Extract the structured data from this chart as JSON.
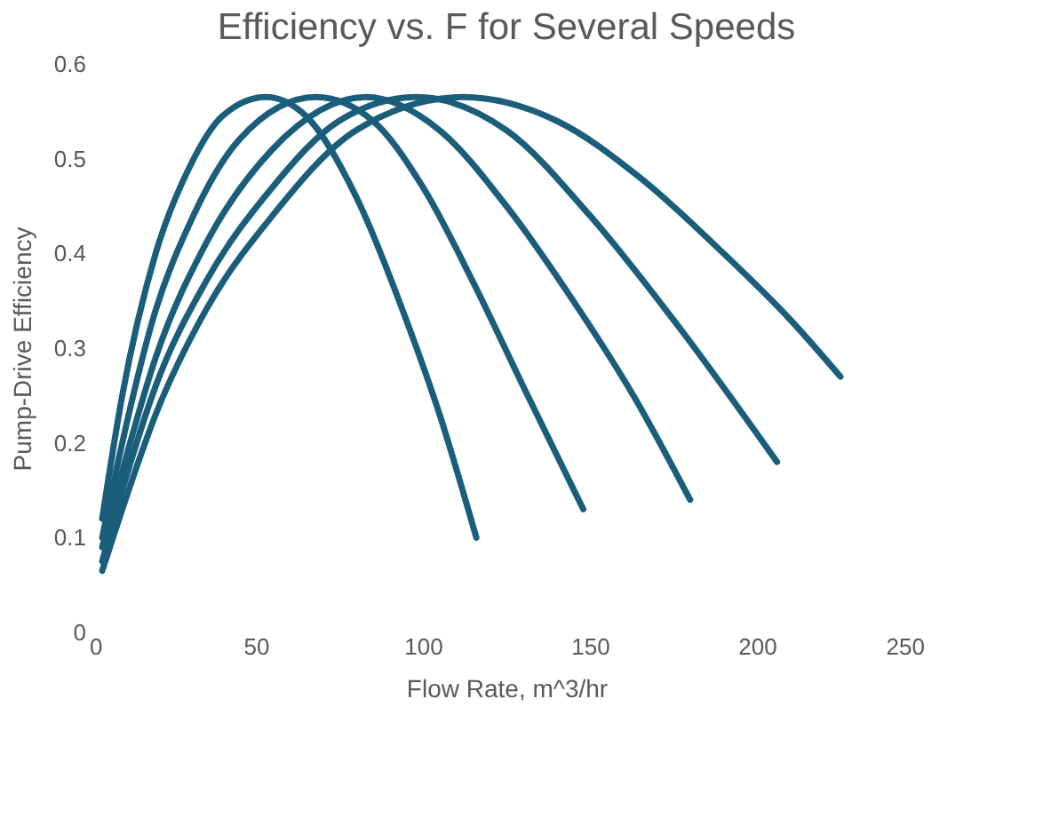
{
  "chart_data": {
    "type": "line",
    "title": "Efficiency vs. F for Several Speeds",
    "xlabel": "Flow Rate, m^3/hr",
    "ylabel": "Pump-Drive Efficiency",
    "xlim": [
      0,
      250
    ],
    "xticks": [
      0,
      50,
      100,
      150,
      200,
      250
    ],
    "ylim": [
      0,
      0.6
    ],
    "yticks": [
      0,
      0.1,
      0.2,
      0.3,
      0.4,
      0.5,
      0.6
    ],
    "grid": false,
    "legend": false,
    "marker": "none",
    "line_style": "solid",
    "series": [
      {
        "color": "#1b5e7b",
        "x": [
          4,
          10,
          20,
          30,
          40,
          53,
          65,
          80,
          95,
          105,
          116
        ],
        "values": [
          0.12,
          0.25,
          0.4,
          0.49,
          0.545,
          0.565,
          0.545,
          0.46,
          0.33,
          0.23,
          0.1
        ]
      },
      {
        "color": "#1b5e7b",
        "x": [
          4,
          10,
          20,
          30,
          45,
          68,
          85,
          100,
          115,
          130,
          148
        ],
        "values": [
          0.1,
          0.2,
          0.34,
          0.43,
          0.52,
          0.565,
          0.54,
          0.47,
          0.37,
          0.26,
          0.13
        ]
      },
      {
        "color": "#1b5e7b",
        "x": [
          4,
          10,
          20,
          35,
          55,
          83,
          105,
          125,
          145,
          163,
          180
        ],
        "values": [
          0.09,
          0.17,
          0.29,
          0.41,
          0.51,
          0.565,
          0.53,
          0.45,
          0.35,
          0.25,
          0.14
        ]
      },
      {
        "color": "#1b5e7b",
        "x": [
          4,
          10,
          20,
          35,
          55,
          75,
          98,
          125,
          150,
          175,
          206
        ],
        "values": [
          0.075,
          0.15,
          0.26,
          0.37,
          0.47,
          0.54,
          0.565,
          0.53,
          0.44,
          0.33,
          0.18
        ]
      },
      {
        "color": "#1b5e7b",
        "x": [
          4,
          10,
          20,
          35,
          55,
          80,
          112,
          140,
          165,
          190,
          210,
          225
        ],
        "values": [
          0.065,
          0.13,
          0.23,
          0.34,
          0.44,
          0.53,
          0.565,
          0.54,
          0.48,
          0.4,
          0.33,
          0.27
        ]
      }
    ]
  }
}
